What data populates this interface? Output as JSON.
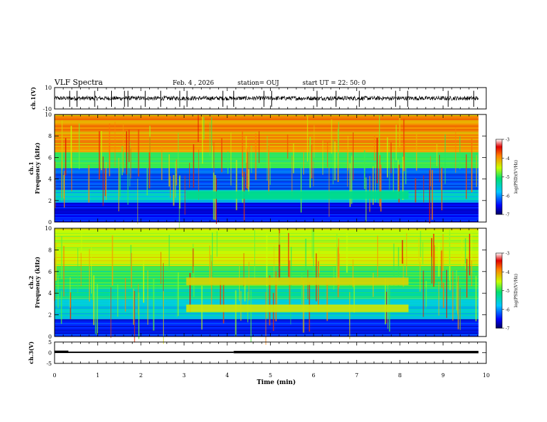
{
  "header": {
    "title": "VLF Spectra",
    "date": "Feb. 4 , 2026",
    "station": "station= OUJ",
    "start": "start  UT =   22: 50: 0"
  },
  "chart_data": [
    {
      "type": "line",
      "ylabel": "ch.1(V)",
      "ylim": [
        -10,
        10
      ],
      "y_ticks": [
        "10",
        "-10"
      ],
      "baseline_v": 0,
      "noise_band_v": [
        -2,
        2
      ],
      "spike_times_min": [
        0.35,
        0.52,
        0.93,
        1.32,
        1.62,
        1.7,
        2.1,
        2.46,
        2.9,
        3.07,
        3.9,
        4.15,
        4.85,
        5.03,
        6.08,
        6.52,
        7.06,
        7.9,
        8.18,
        9.12,
        9.71
      ]
    },
    {
      "type": "heatmap",
      "ylabel": "ch.1\nFrequency (kHz)",
      "ylim": [
        0,
        10
      ],
      "y_ticks": [
        "0",
        "2",
        "4",
        "6",
        "8",
        "10"
      ],
      "xlim": [
        0,
        10
      ],
      "colorbar": {
        "label": "log(PSD)(V²/Hz)",
        "range": [
          -7,
          -3
        ],
        "ticks": [
          "-3",
          "-4",
          "-5",
          "-6",
          "-7"
        ]
      },
      "bands": [
        {
          "f_khz": [
            0.0,
            1.8
          ],
          "level": -6.5
        },
        {
          "f_khz": [
            1.8,
            3.0
          ],
          "level": -5.6
        },
        {
          "f_khz": [
            3.0,
            5.0
          ],
          "level": -6.2
        },
        {
          "f_khz": [
            5.0,
            6.5
          ],
          "level": -4.9
        },
        {
          "f_khz": [
            6.5,
            10.0
          ],
          "level": -4.0
        }
      ],
      "events": [
        {
          "t_min": [
            3.05,
            8.2
          ],
          "f_khz": 2.5,
          "level": -5.2
        }
      ]
    },
    {
      "type": "heatmap",
      "ylabel": "ch.2\nFrequency (kHz)",
      "ylim": [
        0,
        10
      ],
      "y_ticks": [
        "0",
        "2",
        "4",
        "6",
        "8",
        "10"
      ],
      "xlim": [
        0,
        10
      ],
      "colorbar": {
        "label": "log(PSD)(V²/Hz)",
        "range": [
          -7,
          -3
        ],
        "ticks": [
          "-3",
          "-4",
          "-5",
          "-6",
          "-7"
        ]
      },
      "bands": [
        {
          "f_khz": [
            0.0,
            1.6
          ],
          "level": -6.4
        },
        {
          "f_khz": [
            1.6,
            3.5
          ],
          "level": -5.6
        },
        {
          "f_khz": [
            3.5,
            4.5
          ],
          "level": -5.3
        },
        {
          "f_khz": [
            4.5,
            6.5
          ],
          "level": -5.0
        },
        {
          "f_khz": [
            6.5,
            10.0
          ],
          "level": -4.5
        }
      ],
      "events": [
        {
          "t_min": [
            3.05,
            8.2
          ],
          "f_khz": 2.6,
          "level": -4.4
        },
        {
          "t_min": [
            3.05,
            8.2
          ],
          "f_khz": 5.1,
          "level": -4.3
        }
      ]
    },
    {
      "type": "line",
      "ylabel": "ch.3(V)",
      "ylim": [
        -5,
        5
      ],
      "y_ticks": [
        "5",
        "0",
        "-5"
      ],
      "segments": [
        {
          "t_min": [
            0.0,
            0.32
          ],
          "value": 0.4
        },
        {
          "t_min": [
            0.32,
            4.15
          ],
          "value": 0.2
        },
        {
          "t_min": [
            4.15,
            9.82
          ],
          "value": 0.3
        }
      ]
    }
  ],
  "x_axis": {
    "label": "Time (min)",
    "ticks": [
      "0",
      "1",
      "2",
      "3",
      "4",
      "5",
      "6",
      "7",
      "8",
      "9",
      "10"
    ],
    "xlim": [
      0,
      10
    ],
    "data_end_min": 9.82
  }
}
